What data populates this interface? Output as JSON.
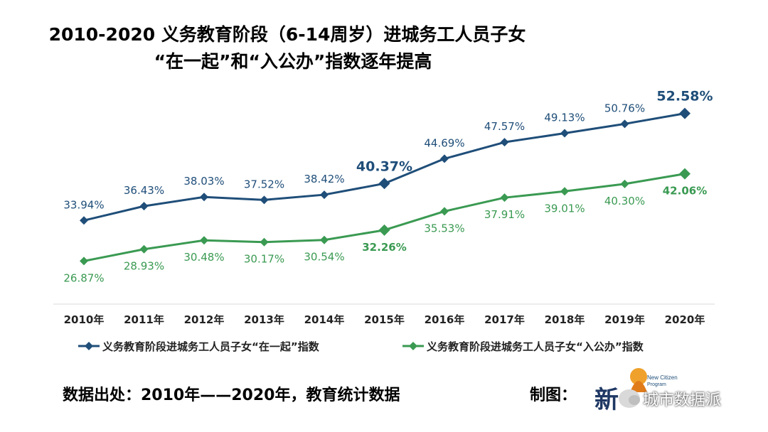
{
  "title": {
    "line1": "2010-2020 义务教育阶段（6-14周岁）进城务工人员子女",
    "line2": "“在一起”和“入公办”指数逐年提高"
  },
  "chart_data": {
    "type": "line",
    "categories": [
      "2010年",
      "2011年",
      "2012年",
      "2013年",
      "2014年",
      "2015年",
      "2016年",
      "2017年",
      "2018年",
      "2019年",
      "2020年"
    ],
    "series": [
      {
        "name": "义务教育阶段进城务工人员子女“在一起”指数",
        "color": "#1f4e79",
        "marker": "diamond",
        "values": [
          33.94,
          36.43,
          38.03,
          37.52,
          38.42,
          40.37,
          44.69,
          47.57,
          49.13,
          50.76,
          52.58
        ],
        "labels": [
          "33.94%",
          "36.43%",
          "38.03%",
          "37.52%",
          "38.42%",
          "40.37%",
          "44.69%",
          "47.57%",
          "49.13%",
          "50.76%",
          "52.58%"
        ],
        "highlight": [
          5,
          10
        ]
      },
      {
        "name": "义务教育阶段进城务工人员子女“入公办”指数",
        "color": "#3a9a52",
        "marker": "diamond",
        "values": [
          26.87,
          28.93,
          30.48,
          30.17,
          30.54,
          32.26,
          35.53,
          37.91,
          39.01,
          40.3,
          42.06
        ],
        "labels": [
          "26.87%",
          "28.93%",
          "30.48%",
          "30.17%",
          "30.54%",
          "32.26%",
          "35.53%",
          "37.91%",
          "39.01%",
          "40.30%",
          "42.06%"
        ],
        "highlight": [
          5,
          10
        ]
      }
    ],
    "legend_position": "bottom",
    "grid": false
  },
  "footer": {
    "source": "数据出处：2010年——2020年，教育统计数据",
    "made_by": "制图："
  },
  "logo": {
    "big_char": "新",
    "small_text": "New Citizen Program"
  },
  "watermark": {
    "text": "城市数据派",
    "icon": "wechat-icon"
  }
}
